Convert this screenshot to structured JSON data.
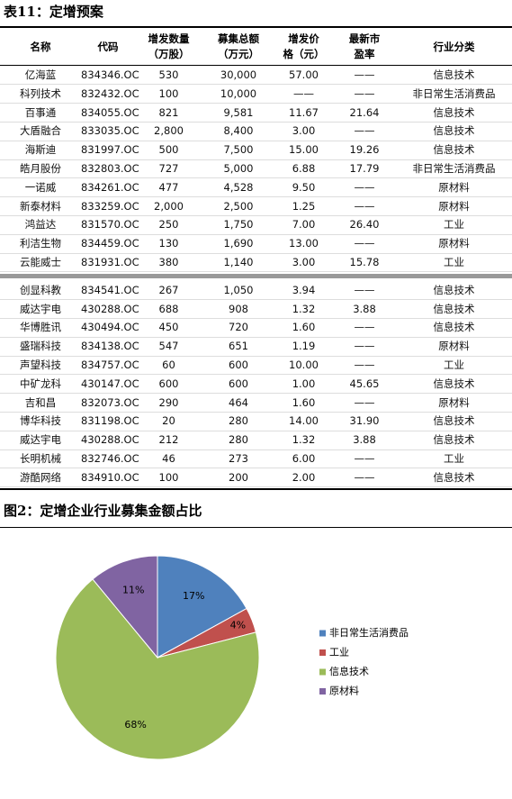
{
  "header": {
    "title": "表11：定增预案"
  },
  "table": {
    "columns": [
      [
        "名称"
      ],
      [
        "代码"
      ],
      [
        "增发数量",
        "（万股）"
      ],
      [
        "募集总额",
        "（万元）"
      ],
      [
        "增发价",
        "格（元）"
      ],
      [
        "最新市",
        "盈率"
      ],
      [
        "行业分类"
      ]
    ],
    "groups": [
      [
        [
          "亿海蓝",
          "834346.OC",
          "530",
          "30,000",
          "57.00",
          "——",
          "信息技术"
        ],
        [
          "科列技术",
          "832432.OC",
          "100",
          "10,000",
          "——",
          "——",
          "非日常生活消费品"
        ],
        [
          "百事通",
          "834055.OC",
          "821",
          "9,581",
          "11.67",
          "21.64",
          "信息技术"
        ],
        [
          "大盾融合",
          "833035.OC",
          "2,800",
          "8,400",
          "3.00",
          "——",
          "信息技术"
        ],
        [
          "海斯迪",
          "831997.OC",
          "500",
          "7,500",
          "15.00",
          "19.26",
          "信息技术"
        ],
        [
          "皓月股份",
          "832803.OC",
          "727",
          "5,000",
          "6.88",
          "17.79",
          "非日常生活消费品"
        ],
        [
          "一诺威",
          "834261.OC",
          "477",
          "4,528",
          "9.50",
          "——",
          "原材料"
        ],
        [
          "新泰材料",
          "833259.OC",
          "2,000",
          "2,500",
          "1.25",
          "——",
          "原材料"
        ],
        [
          "鸿益达",
          "831570.OC",
          "250",
          "1,750",
          "7.00",
          "26.40",
          "工业"
        ],
        [
          "利洁生物",
          "834459.OC",
          "130",
          "1,690",
          "13.00",
          "——",
          "原材料"
        ],
        [
          "云能威士",
          "831931.OC",
          "380",
          "1,140",
          "3.00",
          "15.78",
          "工业"
        ]
      ],
      [
        [
          "创显科教",
          "834541.OC",
          "267",
          "1,050",
          "3.94",
          "——",
          "信息技术"
        ],
        [
          "威达宇电",
          "430288.OC",
          "688",
          "908",
          "1.32",
          "3.88",
          "信息技术"
        ],
        [
          "华博胜讯",
          "430494.OC",
          "450",
          "720",
          "1.60",
          "——",
          "信息技术"
        ],
        [
          "盛瑞科技",
          "834138.OC",
          "547",
          "651",
          "1.19",
          "——",
          "原材料"
        ],
        [
          "声望科技",
          "834757.OC",
          "60",
          "600",
          "10.00",
          "——",
          "工业"
        ],
        [
          "中矿龙科",
          "430147.OC",
          "600",
          "600",
          "1.00",
          "45.65",
          "信息技术"
        ],
        [
          "吉和昌",
          "832073.OC",
          "290",
          "464",
          "1.60",
          "——",
          "原材料"
        ],
        [
          "博华科技",
          "831198.OC",
          "20",
          "280",
          "14.00",
          "31.90",
          "信息技术"
        ],
        [
          "威达宇电",
          "430288.OC",
          "212",
          "280",
          "1.32",
          "3.88",
          "信息技术"
        ],
        [
          "长明机械",
          "832746.OC",
          "46",
          "273",
          "6.00",
          "——",
          "工业"
        ],
        [
          "游酷网络",
          "834910.OC",
          "100",
          "200",
          "2.00",
          "——",
          "信息技术"
        ]
      ]
    ]
  },
  "chart_data": {
    "type": "pie",
    "title": "图2：定增企业行业募集金额占比",
    "categories": [
      "非日常生活消费品",
      "工业",
      "信息技术",
      "原材料"
    ],
    "values": [
      17,
      4,
      68,
      11
    ],
    "value_labels": [
      "17%",
      "4%",
      "68%",
      "11%"
    ],
    "colors": [
      "#4f81bd",
      "#c0504d",
      "#9bbb59",
      "#8064a2"
    ]
  }
}
